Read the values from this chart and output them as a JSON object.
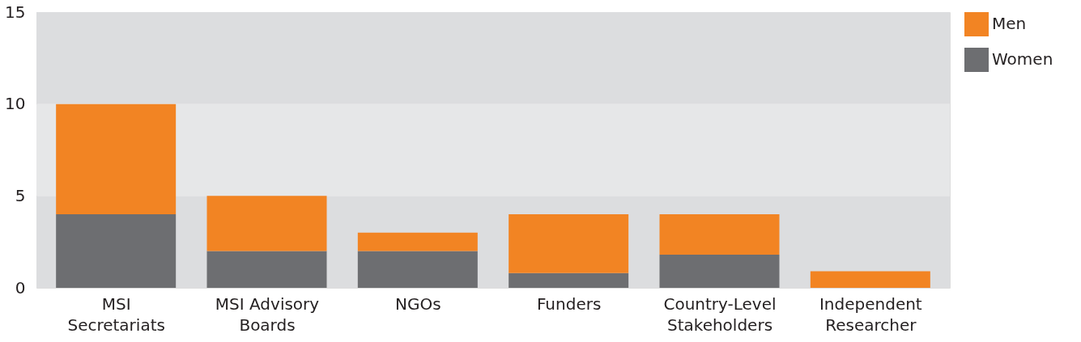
{
  "chart_data": {
    "type": "bar",
    "stacked": true,
    "categories": [
      "MSI\nSecretariats",
      "MSI Advisory\nBoards",
      "NGOs",
      "Funders",
      "Country-Level\nStakeholders",
      "Independent\nResearcher"
    ],
    "series": [
      {
        "name": "Women",
        "color": "#6d6e71",
        "values": [
          4,
          2,
          2,
          0.8,
          1.8,
          0
        ]
      },
      {
        "name": "Men",
        "color": "#f28423",
        "values": [
          6,
          3,
          1,
          3.2,
          2.2,
          0.9
        ]
      }
    ],
    "ylim": [
      0,
      15
    ],
    "yticks": [
      0,
      5,
      10,
      15
    ],
    "grid": false,
    "legend": "top right",
    "bands": [
      {
        "axis": "y",
        "from": 0,
        "to": 5,
        "color": "#dcdddf"
      },
      {
        "axis": "y",
        "from": 5,
        "to": 10,
        "color": "#e6e7e8"
      },
      {
        "axis": "y",
        "from": 10,
        "to": 15,
        "color": "#dcdddf"
      }
    ]
  }
}
